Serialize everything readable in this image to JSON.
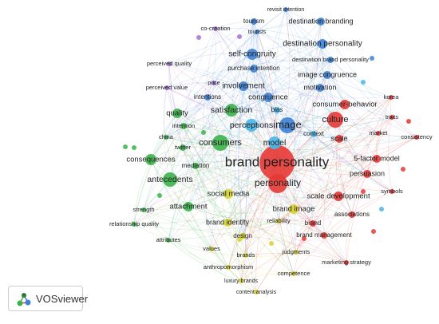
{
  "nodes": [
    {
      "label": "brand personality",
      "color": "#e53935"
    },
    {
      "label": "revisit intention",
      "color": "#3d82d6"
    },
    {
      "label": "tourism",
      "color": "#3d82d6"
    },
    {
      "label": "destination branding",
      "color": "#3d82d6"
    },
    {
      "label": "tourists",
      "color": "#3d82d6"
    },
    {
      "label": "destination personality",
      "color": "#3d82d6"
    },
    {
      "label": "self-congruity",
      "color": "#3d82d6"
    },
    {
      "label": "destination brand personality",
      "color": "#3d82d6"
    },
    {
      "label": "purchase intention",
      "color": "#3d82d6"
    },
    {
      "label": "image congruence",
      "color": "#3d82d6"
    },
    {
      "label": "involvement",
      "color": "#3d82d6"
    },
    {
      "label": "motivation",
      "color": "#3d82d6"
    },
    {
      "label": "congruence",
      "color": "#3d82d6"
    },
    {
      "label": "intentions",
      "color": "#3d82d6"
    },
    {
      "label": "bias",
      "color": "#49b6e8"
    },
    {
      "label": "perceptions",
      "color": "#49b6e8"
    },
    {
      "label": "image",
      "color": "#3d82d6"
    },
    {
      "label": "context",
      "color": "#49b6e8"
    },
    {
      "label": "price",
      "color": "#a56fd8"
    },
    {
      "label": "co-creation",
      "color": "#a56fd8"
    },
    {
      "label": "perceived quality",
      "color": "#a56fd8"
    },
    {
      "label": "perceived value",
      "color": "#a56fd8"
    },
    {
      "label": "quality",
      "color": "#3cb34a"
    },
    {
      "label": "satisfaction",
      "color": "#3cb34a"
    },
    {
      "label": "intention",
      "color": "#3cb34a"
    },
    {
      "label": "china",
      "color": "#3cb34a"
    },
    {
      "label": "consumers",
      "color": "#3cb34a"
    },
    {
      "label": "twitter",
      "color": "#3cb34a"
    },
    {
      "label": "consequences",
      "color": "#3cb34a"
    },
    {
      "label": "mediation",
      "color": "#3cb34a"
    },
    {
      "label": "antecedents",
      "color": "#3cb34a"
    },
    {
      "label": "attachment",
      "color": "#3cb34a"
    },
    {
      "label": "strength",
      "color": "#3cb34a"
    },
    {
      "label": "relationship quality",
      "color": "#3cb34a"
    },
    {
      "label": "attributes",
      "color": "#3cb34a"
    },
    {
      "label": "model",
      "color": "#49b6e8"
    },
    {
      "label": "culture",
      "color": "#e53935"
    },
    {
      "label": "consumer-behavior",
      "color": "#e53935"
    },
    {
      "label": "korea",
      "color": "#e53935"
    },
    {
      "label": "traits",
      "color": "#e53935"
    },
    {
      "label": "market",
      "color": "#e53935"
    },
    {
      "label": "scale",
      "color": "#e53935"
    },
    {
      "label": "consistency",
      "color": "#e53935"
    },
    {
      "label": "5-factor model",
      "color": "#e53935"
    },
    {
      "label": "persuasion",
      "color": "#e53935"
    },
    {
      "label": "personality",
      "color": "#e53935"
    },
    {
      "label": "symbols",
      "color": "#e53935"
    },
    {
      "label": "scale development",
      "color": "#e53935"
    },
    {
      "label": "associations",
      "color": "#e53935"
    },
    {
      "label": "brand",
      "color": "#e53935"
    },
    {
      "label": "brand management",
      "color": "#e53935"
    },
    {
      "label": "marketing strategy",
      "color": "#e53935"
    },
    {
      "label": "social media",
      "color": "#d8d22a"
    },
    {
      "label": "brand image",
      "color": "#d8d22a"
    },
    {
      "label": "brand identity",
      "color": "#d8d22a"
    },
    {
      "label": "reliability",
      "color": "#d8d22a"
    },
    {
      "label": "design",
      "color": "#d8d22a"
    },
    {
      "label": "values",
      "color": "#d8d22a"
    },
    {
      "label": "brands",
      "color": "#d8d22a"
    },
    {
      "label": "judgments",
      "color": "#d8d22a"
    },
    {
      "label": "anthropomorphism",
      "color": "#d8d22a"
    },
    {
      "label": "competence",
      "color": "#d8d22a"
    },
    {
      "label": "luxury brands",
      "color": "#d8d22a"
    },
    {
      "label": "content analysis",
      "color": "#d8d22a"
    }
  ],
  "logo": {
    "text": "VOSviewer"
  }
}
